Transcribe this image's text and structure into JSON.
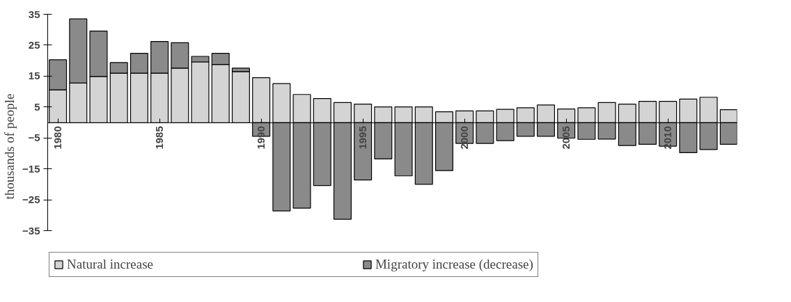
{
  "chart_data": {
    "type": "bar",
    "stacked": true,
    "ylabel": "thousands of people",
    "x": [
      1980,
      1981,
      1982,
      1983,
      1984,
      1985,
      1986,
      1987,
      1988,
      1989,
      1990,
      1991,
      1992,
      1993,
      1994,
      1995,
      1996,
      1997,
      1998,
      1999,
      2000,
      2001,
      2002,
      2003,
      2004,
      2005,
      2006,
      2007,
      2008,
      2009,
      2010,
      2011,
      2012,
      2013
    ],
    "series": [
      {
        "name": "Natural increase",
        "color": "#d4d4d4",
        "values": [
          10.6,
          12.8,
          14.9,
          16.0,
          16.0,
          16.0,
          17.6,
          19.6,
          18.8,
          16.5,
          14.5,
          12.6,
          9.1,
          7.8,
          6.5,
          6.0,
          5.1,
          5.1,
          5.1,
          3.5,
          3.8,
          3.8,
          4.3,
          4.8,
          5.7,
          4.4,
          4.8,
          6.5,
          6.0,
          6.9,
          6.9,
          7.6,
          8.2,
          4.2
        ]
      },
      {
        "name": "Migratory increase (decrease)",
        "color": "#8a8a8a",
        "values": [
          9.7,
          20.7,
          14.7,
          3.4,
          6.4,
          10.2,
          8.2,
          1.8,
          3.6,
          1.1,
          -4.4,
          -28.5,
          -27.6,
          -20.3,
          -31.2,
          -18.5,
          -11.7,
          -17.2,
          -19.9,
          -15.5,
          -6.7,
          -6.7,
          -5.8,
          -4.4,
          -4.4,
          -5.0,
          -5.4,
          -5.3,
          -7.4,
          -7.0,
          -7.6,
          -9.7,
          -8.7,
          -7.0
        ]
      }
    ],
    "xlim": [
      1979.5,
      2013.4
    ],
    "xticks": [
      1980,
      1985,
      1990,
      1995,
      2000,
      2005,
      2010
    ],
    "ylim": [
      -35,
      35
    ],
    "yticks": [
      35,
      25,
      15,
      5,
      -5,
      -15,
      -25,
      -35
    ],
    "grid": false,
    "legend": "bottom"
  }
}
